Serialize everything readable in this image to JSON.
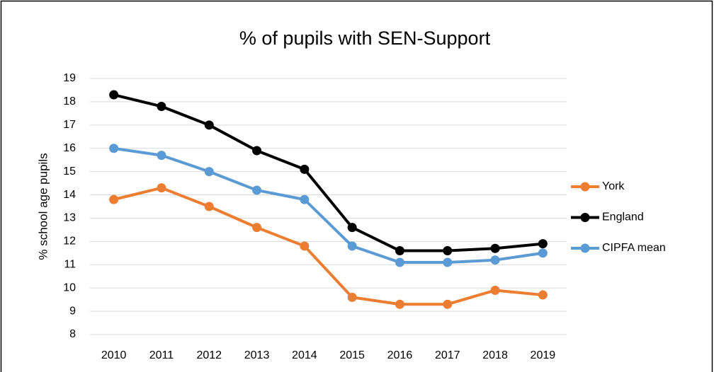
{
  "chart_data": {
    "type": "line",
    "title": "% of pupils with SEN-Support",
    "y_label": "% school age pupils",
    "categories": [
      "2010",
      "2011",
      "2012",
      "2013",
      "2014",
      "2015",
      "2016",
      "2017",
      "2018",
      "2019"
    ],
    "series": [
      {
        "name": "York",
        "color": "#ed7d31",
        "values": [
          13.8,
          14.3,
          13.5,
          12.6,
          11.8,
          9.6,
          9.3,
          9.3,
          9.9,
          9.7
        ]
      },
      {
        "name": "England",
        "color": "#000000",
        "values": [
          18.3,
          17.8,
          17.0,
          15.9,
          15.1,
          12.6,
          11.6,
          11.6,
          11.7,
          11.9
        ]
      },
      {
        "name": "CIPFA mean",
        "color": "#5b9bd5",
        "values": [
          16.0,
          15.7,
          15.0,
          14.2,
          13.8,
          11.8,
          11.1,
          11.1,
          11.2,
          11.5
        ]
      }
    ],
    "ylim": [
      8,
      19
    ],
    "yticks": [
      8,
      9,
      10,
      11,
      12,
      13,
      14,
      15,
      16,
      17,
      18,
      19
    ],
    "grid": true,
    "legend": "right"
  }
}
